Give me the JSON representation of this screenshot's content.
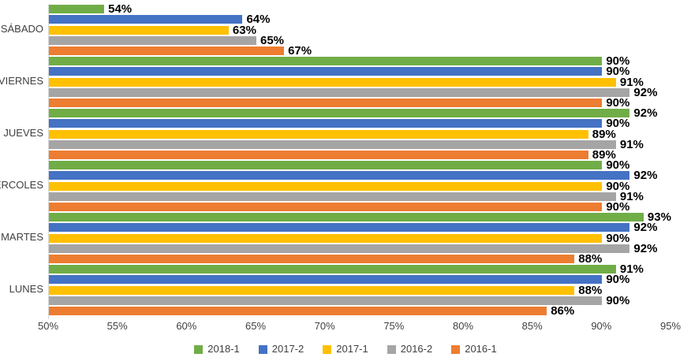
{
  "chart_data": {
    "type": "bar",
    "orientation": "horizontal",
    "title": "",
    "categories": [
      "SÁBADO",
      "VIERNES",
      "JUEVES",
      "MIÉRCOLES",
      "MARTES",
      "LUNES"
    ],
    "series": [
      {
        "name": "2018-1",
        "color": "#70AD47",
        "values": [
          54,
          90,
          92,
          90,
          93,
          91
        ]
      },
      {
        "name": "2017-2",
        "color": "#4472C4",
        "values": [
          64,
          90,
          90,
          92,
          92,
          90
        ]
      },
      {
        "name": "2017-1",
        "color": "#FFC000",
        "values": [
          63,
          91,
          89,
          90,
          90,
          88
        ]
      },
      {
        "name": "2016-2",
        "color": "#A5A5A5",
        "values": [
          65,
          92,
          91,
          91,
          92,
          90
        ]
      },
      {
        "name": "2016-1",
        "color": "#ED7D31",
        "values": [
          67,
          90,
          89,
          90,
          88,
          86
        ]
      }
    ],
    "x_axis": {
      "min": 50,
      "max": 95,
      "step": 5,
      "tick_labels": [
        "50%",
        "55%",
        "60%",
        "65%",
        "70%",
        "75%",
        "80%",
        "85%",
        "90%",
        "95%"
      ]
    },
    "data_label_suffix": "%",
    "legend_position": "bottom",
    "grid": false
  },
  "colors": {
    "background": "#FFFFFF",
    "axis_text": "#404040",
    "data_label_text": "#000000",
    "axis_line": "#D9D9D9"
  }
}
